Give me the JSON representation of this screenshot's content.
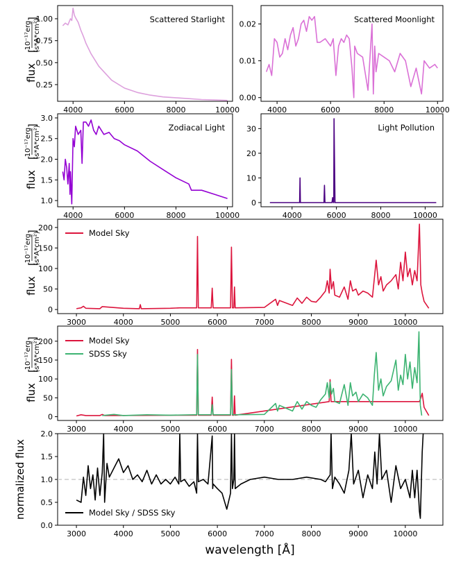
{
  "figure": {
    "xlabel": "wavelength [Å]",
    "flux_label_main": "flux",
    "flux_unit_top": "10⁻¹⁷erg",
    "flux_unit_bottom": "(s*A*cm²)",
    "ratio_ylabel": "normalized flux"
  },
  "chart_data": [
    {
      "id": "starlight",
      "type": "line",
      "title": "Scattered Starlight",
      "color": "#dda0dd",
      "xlim": [
        3400,
        10200
      ],
      "ylim": [
        0.06,
        1.15
      ],
      "xticks": [
        4000,
        6000,
        8000,
        10000
      ],
      "yticks": [
        0.25,
        0.5,
        0.75,
        1.0
      ],
      "ytick_labels": [
        "0.25",
        "0.50",
        "0.75",
        "1.00"
      ],
      "series": [
        {
          "name": "Scattered Starlight",
          "x": [
            3600,
            3700,
            3800,
            3900,
            3950,
            4000,
            4050,
            4100,
            4200,
            4300,
            4400,
            4500,
            4700,
            5000,
            5500,
            6000,
            6500,
            7000,
            7500,
            8000,
            8500,
            9000,
            9500,
            10000
          ],
          "y": [
            0.92,
            0.95,
            0.93,
            1.0,
            0.98,
            1.12,
            1.04,
            1.01,
            0.96,
            0.87,
            0.8,
            0.72,
            0.6,
            0.46,
            0.3,
            0.21,
            0.16,
            0.13,
            0.11,
            0.1,
            0.09,
            0.08,
            0.075,
            0.07
          ]
        }
      ]
    },
    {
      "id": "moonlight",
      "type": "line",
      "title": "Scattered Moonlight",
      "color": "#da70d6",
      "xlim": [
        3400,
        10200
      ],
      "ylim": [
        -0.001,
        0.025
      ],
      "xticks": [
        4000,
        6000,
        8000,
        10000
      ],
      "yticks": [
        0.0,
        0.01,
        0.02
      ],
      "ytick_labels": [
        "0.00",
        "0.01",
        "0.02"
      ],
      "series": [
        {
          "name": "Scattered Moonlight",
          "x": [
            3600,
            3700,
            3800,
            3900,
            4000,
            4100,
            4200,
            4300,
            4400,
            4500,
            4600,
            4700,
            4800,
            4900,
            5000,
            5100,
            5200,
            5300,
            5400,
            5500,
            5600,
            5800,
            6000,
            6100,
            6200,
            6300,
            6400,
            6500,
            6600,
            6700,
            6800,
            6870,
            6900,
            7000,
            7200,
            7400,
            7550,
            7600,
            7650,
            7700,
            7800,
            8000,
            8200,
            8400,
            8600,
            8800,
            9000,
            9200,
            9400,
            9500,
            9700,
            9900,
            10000
          ],
          "y": [
            0.007,
            0.009,
            0.006,
            0.016,
            0.015,
            0.011,
            0.012,
            0.016,
            0.013,
            0.017,
            0.019,
            0.014,
            0.016,
            0.02,
            0.021,
            0.018,
            0.022,
            0.021,
            0.022,
            0.015,
            0.015,
            0.016,
            0.014,
            0.016,
            0.006,
            0.014,
            0.016,
            0.015,
            0.017,
            0.016,
            0.008,
            0.0,
            0.014,
            0.012,
            0.011,
            0.002,
            0.02,
            0.001,
            0.014,
            0.007,
            0.012,
            0.011,
            0.01,
            0.007,
            0.012,
            0.01,
            0.003,
            0.008,
            0.001,
            0.01,
            0.008,
            0.009,
            0.008
          ]
        }
      ]
    },
    {
      "id": "zodiacal",
      "type": "line",
      "title": "Zodiacal Light",
      "color": "#9400d3",
      "xlim": [
        3400,
        10200
      ],
      "ylim": [
        0.85,
        3.1
      ],
      "xticks": [
        4000,
        6000,
        8000,
        10000
      ],
      "yticks": [
        1.0,
        1.5,
        2.0,
        2.5,
        3.0
      ],
      "ytick_labels": [
        "1.0",
        "1.5",
        "2.0",
        "2.5",
        "3.0"
      ],
      "series": [
        {
          "name": "Zodiacal Light",
          "x": [
            3600,
            3650,
            3700,
            3750,
            3800,
            3850,
            3880,
            3900,
            3950,
            4000,
            4050,
            4100,
            4200,
            4300,
            4350,
            4400,
            4500,
            4600,
            4700,
            4800,
            4900,
            5000,
            5200,
            5400,
            5600,
            5800,
            6000,
            6500,
            7000,
            7500,
            8000,
            8500,
            8600,
            9000,
            9500,
            10000
          ],
          "y": [
            1.7,
            1.5,
            2.0,
            1.8,
            1.4,
            1.9,
            1.15,
            1.7,
            0.92,
            2.5,
            2.3,
            2.8,
            2.6,
            2.7,
            1.9,
            2.9,
            2.9,
            2.8,
            2.95,
            2.7,
            2.6,
            2.8,
            2.6,
            2.65,
            2.5,
            2.45,
            2.35,
            2.2,
            1.95,
            1.75,
            1.55,
            1.4,
            1.25,
            1.25,
            1.15,
            1.05
          ]
        }
      ]
    },
    {
      "id": "lightpollution",
      "type": "line",
      "title": "Light Pollution",
      "color": "#4b0082",
      "xlim": [
        2600,
        10800
      ],
      "ylim": [
        -1.7,
        36
      ],
      "xticks": [
        4000,
        6000,
        8000,
        10000
      ],
      "yticks": [
        0,
        10,
        20,
        30
      ],
      "ytick_labels": [
        "0",
        "10",
        "20",
        "30"
      ],
      "series": [
        {
          "name": "Light Pollution",
          "x": [
            3000,
            4340,
            4358,
            4376,
            5440,
            5461,
            5482,
            5800,
            5830,
            5860,
            5880,
            5893,
            5908,
            5935,
            10500
          ],
          "y": [
            0,
            0,
            10,
            0,
            0,
            7,
            0,
            0,
            2,
            0,
            0,
            34,
            21,
            0,
            0
          ]
        }
      ]
    },
    {
      "id": "modelsky",
      "type": "line",
      "legend": "upper-left",
      "color": "#dc143c",
      "xlim": [
        2600,
        10800
      ],
      "ylim": [
        -10,
        220
      ],
      "xticks": [
        3000,
        4000,
        5000,
        6000,
        7000,
        8000,
        9000,
        10000
      ],
      "yticks": [
        0,
        50,
        100,
        150,
        200
      ],
      "ytick_labels": [
        "0",
        "50",
        "100",
        "150",
        "200"
      ],
      "series": [
        {
          "name": "Model Sky",
          "x": [
            3000,
            3100,
            3150,
            3200,
            3500,
            3550,
            4000,
            4340,
            4360,
            4380,
            5000,
            5200,
            5500,
            5560,
            5577,
            5595,
            5870,
            5890,
            5910,
            6280,
            6300,
            6320,
            6350,
            6364,
            6380,
            7000,
            7240,
            7280,
            7320,
            7600,
            7700,
            7800,
            7900,
            8000,
            8100,
            8200,
            8300,
            8340,
            8380,
            8399,
            8430,
            8470,
            8500,
            8600,
            8700,
            8780,
            8830,
            8880,
            8950,
            9000,
            9100,
            9200,
            9300,
            9340,
            9380,
            9430,
            9480,
            9530,
            9600,
            9700,
            9800,
            9850,
            9900,
            9950,
            10000,
            10050,
            10100,
            10150,
            10200,
            10250,
            10300,
            10330,
            10360,
            10400,
            10500
          ],
          "y": [
            2,
            4,
            8,
            3,
            2,
            7,
            3,
            2,
            12,
            2,
            3,
            4,
            4,
            4,
            178,
            4,
            4,
            52,
            4,
            4,
            152,
            4,
            4,
            55,
            4,
            5,
            25,
            10,
            22,
            10,
            28,
            15,
            30,
            20,
            18,
            30,
            45,
            70,
            40,
            98,
            50,
            68,
            35,
            30,
            55,
            25,
            70,
            45,
            50,
            35,
            45,
            40,
            30,
            75,
            120,
            60,
            80,
            45,
            60,
            70,
            85,
            50,
            115,
            70,
            140,
            80,
            100,
            60,
            95,
            70,
            208,
            60,
            40,
            20,
            3
          ]
        }
      ]
    },
    {
      "id": "comparison",
      "type": "line",
      "legend": "upper-left",
      "xlim": [
        2600,
        10800
      ],
      "ylim": [
        -10,
        240
      ],
      "xticks": [
        3000,
        4000,
        5000,
        6000,
        7000,
        8000,
        9000,
        10000
      ],
      "yticks": [
        0,
        50,
        100,
        150,
        200
      ],
      "ytick_labels": [
        "0",
        "50",
        "100",
        "150",
        "200"
      ],
      "series": [
        {
          "name": "Model Sky",
          "color": "#dc143c",
          "x": [
            3000,
            3100,
            3200,
            3500,
            3550,
            3600,
            5560,
            5577,
            5595,
            5870,
            5890,
            5910,
            6280,
            6300,
            6320,
            6350,
            6364,
            6380,
            8380,
            8399,
            8420,
            10300,
            10330,
            10360,
            10400,
            10500
          ],
          "y": [
            2,
            5,
            3,
            3,
            6,
            3,
            4,
            178,
            4,
            4,
            52,
            4,
            4,
            152,
            4,
            4,
            55,
            4,
            40,
            98,
            40,
            40,
            50,
            62,
            25,
            3
          ]
        },
        {
          "name": "SDSS Sky",
          "color": "#3cb371",
          "x": [
            3550,
            3800,
            4000,
            4500,
            5000,
            5500,
            5560,
            5577,
            5595,
            5870,
            5890,
            5910,
            6280,
            6300,
            6320,
            7000,
            7240,
            7280,
            7320,
            7600,
            7700,
            7800,
            7900,
            8000,
            8100,
            8200,
            8300,
            8340,
            8380,
            8399,
            8430,
            8470,
            8500,
            8600,
            8700,
            8780,
            8830,
            8880,
            8950,
            9000,
            9100,
            9200,
            9300,
            9340,
            9380,
            9430,
            9480,
            9530,
            9600,
            9700,
            9800,
            9850,
            9900,
            9950,
            10000,
            10050,
            10100,
            10150,
            10200,
            10250,
            10290,
            10320,
            10350
          ],
          "y": [
            3,
            6,
            3,
            5,
            4,
            5,
            5,
            165,
            5,
            5,
            32,
            5,
            5,
            125,
            5,
            6,
            35,
            15,
            30,
            15,
            40,
            20,
            40,
            30,
            25,
            45,
            60,
            90,
            50,
            92,
            60,
            75,
            40,
            35,
            85,
            30,
            90,
            55,
            65,
            40,
            60,
            50,
            30,
            110,
            170,
            70,
            100,
            55,
            80,
            95,
            150,
            70,
            110,
            85,
            165,
            100,
            145,
            75,
            130,
            90,
            225,
            30,
            3
          ]
        }
      ]
    },
    {
      "id": "ratio",
      "type": "line",
      "legend": "lower-left",
      "color": "#000000",
      "reference_line": 1.0,
      "reference_color": "#cccccc",
      "xlim": [
        2600,
        10800
      ],
      "ylim": [
        0.0,
        2.0
      ],
      "xticks": [
        3000,
        4000,
        5000,
        6000,
        7000,
        8000,
        9000,
        10000
      ],
      "yticks": [
        0.0,
        0.5,
        1.0,
        1.5,
        2.0
      ],
      "ytick_labels": [
        "0.0",
        "0.5",
        "1.0",
        "1.5",
        "2.0"
      ],
      "series": [
        {
          "name": "Model Sky / SDSS Sky",
          "x": [
            3000,
            3100,
            3150,
            3200,
            3250,
            3300,
            3350,
            3400,
            3450,
            3500,
            3550,
            3580,
            3600,
            3650,
            3700,
            3800,
            3900,
            4000,
            4100,
            4200,
            4300,
            4400,
            4500,
            4600,
            4700,
            4800,
            4900,
            5000,
            5100,
            5180,
            5200,
            5220,
            5300,
            5400,
            5500,
            5560,
            5577,
            5595,
            5700,
            5800,
            5890,
            5900,
            5910,
            6000,
            6100,
            6200,
            6280,
            6300,
            6320,
            6350,
            6364,
            6380,
            6500,
            6700,
            7000,
            7300,
            7600,
            7900,
            8200,
            8300,
            8400,
            8420,
            8450,
            8500,
            8600,
            8700,
            8800,
            8850,
            8900,
            9000,
            9100,
            9200,
            9300,
            9350,
            9400,
            9450,
            9500,
            9600,
            9700,
            9800,
            9900,
            10000,
            10100,
            10150,
            10200,
            10250,
            10300,
            10320,
            10340,
            10360,
            10380
          ],
          "y": [
            0.55,
            0.5,
            1.05,
            0.65,
            1.3,
            0.8,
            1.1,
            0.55,
            1.25,
            0.65,
            1.15,
            2.0,
            0.5,
            1.35,
            1.05,
            1.25,
            1.45,
            1.15,
            1.3,
            1.0,
            1.1,
            0.95,
            1.2,
            0.9,
            1.1,
            0.9,
            1.0,
            0.9,
            1.05,
            0.9,
            2.0,
            0.95,
            1.0,
            0.85,
            0.95,
            0.7,
            2.0,
            0.95,
            1.0,
            0.9,
            1.95,
            0.8,
            0.9,
            0.8,
            0.7,
            0.35,
            0.7,
            2.0,
            0.8,
            1.0,
            2.0,
            0.8,
            0.9,
            1.0,
            1.05,
            1.0,
            1.0,
            1.05,
            1.0,
            0.95,
            1.1,
            2.0,
            0.8,
            1.05,
            0.9,
            0.7,
            1.2,
            2.0,
            0.9,
            1.2,
            0.6,
            1.1,
            0.8,
            1.6,
            0.9,
            2.0,
            1.0,
            1.2,
            0.5,
            1.3,
            0.8,
            1.0,
            0.6,
            1.2,
            0.6,
            1.2,
            0.3,
            0.15,
            0.9,
            1.6,
            2.0
          ]
        }
      ]
    }
  ]
}
